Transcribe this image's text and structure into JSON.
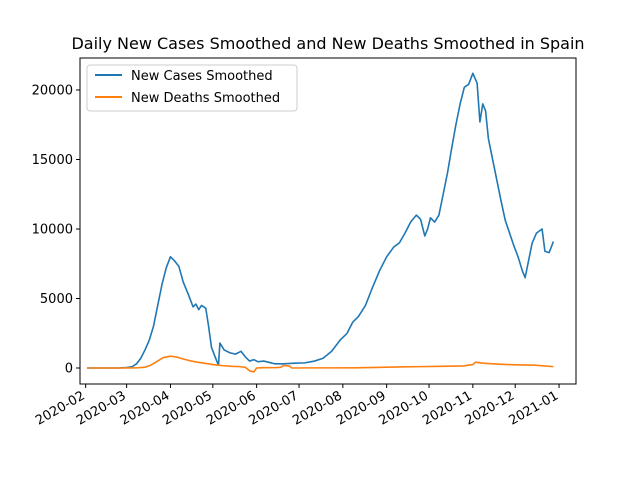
{
  "chart_data": {
    "type": "line",
    "title": "Daily New Cases Smoothed and New Deaths Smoothed in Spain",
    "xlabel": "",
    "ylabel": "",
    "x_ticks": [
      "2020-02",
      "2020-03",
      "2020-04",
      "2020-05",
      "2020-06",
      "2020-07",
      "2020-08",
      "2020-09",
      "2020-10",
      "2020-11",
      "2020-12",
      "2021-01"
    ],
    "y_ticks": [
      0,
      5000,
      10000,
      15000,
      20000
    ],
    "xlim": [
      "2020-01-28",
      "2021-01-13"
    ],
    "ylim": [
      -1150,
      22300
    ],
    "grid": false,
    "legend": "top-left",
    "series": [
      {
        "name": "New Cases Smoothed",
        "color": "#1f77b4",
        "points": [
          [
            "2020-02-02",
            0
          ],
          [
            "2020-02-15",
            0
          ],
          [
            "2020-02-25",
            5
          ],
          [
            "2020-03-01",
            30
          ],
          [
            "2020-03-05",
            100
          ],
          [
            "2020-03-08",
            300
          ],
          [
            "2020-03-11",
            700
          ],
          [
            "2020-03-14",
            1300
          ],
          [
            "2020-03-17",
            2000
          ],
          [
            "2020-03-20",
            3000
          ],
          [
            "2020-03-23",
            4500
          ],
          [
            "2020-03-26",
            6000
          ],
          [
            "2020-03-29",
            7200
          ],
          [
            "2020-04-01",
            8000
          ],
          [
            "2020-04-04",
            7700
          ],
          [
            "2020-04-07",
            7300
          ],
          [
            "2020-04-10",
            6200
          ],
          [
            "2020-04-14",
            5200
          ],
          [
            "2020-04-17",
            4400
          ],
          [
            "2020-04-19",
            4600
          ],
          [
            "2020-04-21",
            4200
          ],
          [
            "2020-04-23",
            4500
          ],
          [
            "2020-04-26",
            4300
          ],
          [
            "2020-04-28",
            3000
          ],
          [
            "2020-04-30",
            1500
          ],
          [
            "2020-05-03",
            700
          ],
          [
            "2020-05-05",
            200
          ],
          [
            "2020-05-06",
            1800
          ],
          [
            "2020-05-09",
            1300
          ],
          [
            "2020-05-13",
            1100
          ],
          [
            "2020-05-17",
            1000
          ],
          [
            "2020-05-21",
            1200
          ],
          [
            "2020-05-24",
            800
          ],
          [
            "2020-05-27",
            500
          ],
          [
            "2020-05-30",
            600
          ],
          [
            "2020-06-02",
            450
          ],
          [
            "2020-06-06",
            500
          ],
          [
            "2020-06-10",
            400
          ],
          [
            "2020-06-14",
            300
          ],
          [
            "2020-06-20",
            300
          ],
          [
            "2020-06-28",
            350
          ],
          [
            "2020-07-05",
            370
          ],
          [
            "2020-07-12",
            500
          ],
          [
            "2020-07-18",
            700
          ],
          [
            "2020-07-24",
            1200
          ],
          [
            "2020-07-30",
            2000
          ],
          [
            "2020-08-04",
            2500
          ],
          [
            "2020-08-08",
            3300
          ],
          [
            "2020-08-12",
            3700
          ],
          [
            "2020-08-17",
            4500
          ],
          [
            "2020-08-22",
            5800
          ],
          [
            "2020-08-27",
            7000
          ],
          [
            "2020-09-01",
            8000
          ],
          [
            "2020-09-06",
            8700
          ],
          [
            "2020-09-10",
            9000
          ],
          [
            "2020-09-14",
            9700
          ],
          [
            "2020-09-18",
            10500
          ],
          [
            "2020-09-22",
            11000
          ],
          [
            "2020-09-25",
            10700
          ],
          [
            "2020-09-28",
            9500
          ],
          [
            "2020-09-30",
            10000
          ],
          [
            "2020-10-02",
            10800
          ],
          [
            "2020-10-05",
            10500
          ],
          [
            "2020-10-08",
            11000
          ],
          [
            "2020-10-11",
            12500
          ],
          [
            "2020-10-14",
            14000
          ],
          [
            "2020-10-17",
            15800
          ],
          [
            "2020-10-20",
            17500
          ],
          [
            "2020-10-23",
            19000
          ],
          [
            "2020-10-26",
            20200
          ],
          [
            "2020-10-29",
            20400
          ],
          [
            "2020-11-01",
            21200
          ],
          [
            "2020-11-04",
            20500
          ],
          [
            "2020-11-06",
            17700
          ],
          [
            "2020-11-08",
            19000
          ],
          [
            "2020-11-10",
            18500
          ],
          [
            "2020-11-12",
            16500
          ],
          [
            "2020-11-14",
            15500
          ],
          [
            "2020-11-18",
            13500
          ],
          [
            "2020-11-21",
            12000
          ],
          [
            "2020-11-24",
            10600
          ],
          [
            "2020-11-27",
            9700
          ],
          [
            "2020-11-30",
            8800
          ],
          [
            "2020-12-03",
            8000
          ],
          [
            "2020-12-06",
            7000
          ],
          [
            "2020-12-08",
            6500
          ],
          [
            "2020-12-10",
            7500
          ],
          [
            "2020-12-13",
            9000
          ],
          [
            "2020-12-16",
            9700
          ],
          [
            "2020-12-20",
            10000
          ],
          [
            "2020-12-22",
            8400
          ],
          [
            "2020-12-25",
            8300
          ],
          [
            "2020-12-28",
            9100
          ]
        ]
      },
      {
        "name": "New Deaths Smoothed",
        "color": "#ff7f0e",
        "points": [
          [
            "2020-02-02",
            0
          ],
          [
            "2020-02-25",
            0
          ],
          [
            "2020-03-08",
            10
          ],
          [
            "2020-03-14",
            60
          ],
          [
            "2020-03-18",
            200
          ],
          [
            "2020-03-22",
            450
          ],
          [
            "2020-03-27",
            750
          ],
          [
            "2020-04-01",
            850
          ],
          [
            "2020-04-05",
            800
          ],
          [
            "2020-04-10",
            650
          ],
          [
            "2020-04-15",
            520
          ],
          [
            "2020-04-20",
            420
          ],
          [
            "2020-04-25",
            350
          ],
          [
            "2020-05-01",
            250
          ],
          [
            "2020-05-07",
            180
          ],
          [
            "2020-05-14",
            120
          ],
          [
            "2020-05-20",
            100
          ],
          [
            "2020-05-24",
            50
          ],
          [
            "2020-05-27",
            -200
          ],
          [
            "2020-05-30",
            -280
          ],
          [
            "2020-06-01",
            0
          ],
          [
            "2020-06-05",
            20
          ],
          [
            "2020-06-15",
            30
          ],
          [
            "2020-06-18",
            50
          ],
          [
            "2020-06-20",
            180
          ],
          [
            "2020-06-24",
            150
          ],
          [
            "2020-06-26",
            0
          ],
          [
            "2020-07-10",
            10
          ],
          [
            "2020-07-25",
            10
          ],
          [
            "2020-08-10",
            15
          ],
          [
            "2020-08-25",
            40
          ],
          [
            "2020-09-10",
            80
          ],
          [
            "2020-09-25",
            100
          ],
          [
            "2020-10-10",
            120
          ],
          [
            "2020-10-25",
            150
          ],
          [
            "2020-11-01",
            250
          ],
          [
            "2020-11-03",
            420
          ],
          [
            "2020-11-08",
            350
          ],
          [
            "2020-11-15",
            300
          ],
          [
            "2020-11-25",
            250
          ],
          [
            "2020-12-05",
            220
          ],
          [
            "2020-12-15",
            200
          ],
          [
            "2020-12-28",
            100
          ]
        ]
      }
    ]
  }
}
